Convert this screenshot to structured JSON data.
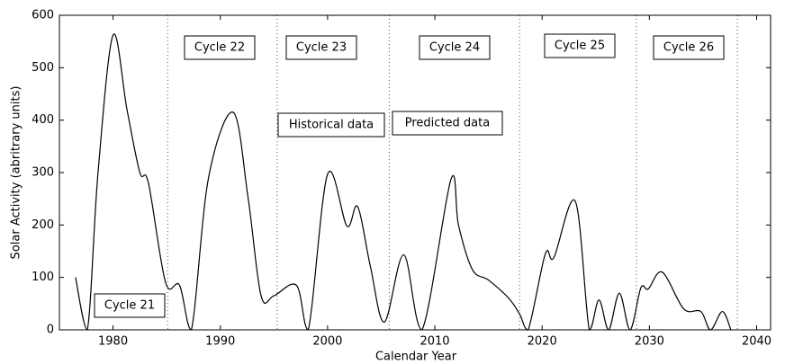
{
  "chart_data": {
    "type": "line",
    "x_label": "Calendar Year",
    "y_label": "Solar Activity (abritrary units)",
    "xlim": [
      1975,
      2041.3
    ],
    "xticks": [
      1980,
      1990,
      2000,
      2010,
      2020,
      2030,
      2040
    ],
    "ylim": [
      0,
      600
    ],
    "yticks": [
      0,
      100,
      200,
      300,
      400,
      500,
      600
    ],
    "grid": false,
    "cycle_boundaries": [
      1985.1,
      1995.3,
      2005.75,
      2017.9,
      2028.8,
      2038.2
    ],
    "annotations": [
      "Cycle 21",
      "Cycle 22",
      "Cycle 23",
      "Cycle 24",
      "Cycle 25",
      "Cycle 26",
      "Historical data",
      "Predicted data"
    ],
    "series": [
      {
        "color": "#000000",
        "x": [
          1976.5,
          1977.6,
          1978.6,
          1980,
          1981.3,
          1982.5,
          1983.3,
          1984.9,
          1986.2,
          1987.3,
          1988.9,
          1991.2,
          1992.6,
          1993.8,
          1995,
          1997.1,
          1998.2,
          2000,
          2001.8,
          2002.8,
          2004,
          2005.3,
          2007.1,
          2008.8,
          2011.5,
          2012.2,
          2013.5,
          2015,
          2016.9,
          2017.9,
          2018.7,
          2020.3,
          2021.1,
          2023.1,
          2024.4,
          2025.3,
          2026.2,
          2027.2,
          2028.2,
          2029.2,
          2029.9,
          2031.2,
          2033.2,
          2034.8,
          2035.7,
          2036.8,
          2037.6
        ],
        "values": [
          100,
          0,
          300,
          562,
          420,
          300,
          280,
          90,
          85,
          0,
          290,
          415,
          250,
          65,
          65,
          85,
          0,
          297,
          198,
          235,
          120,
          15,
          143,
          0,
          287,
          200,
          115,
          95,
          60,
          30,
          0,
          145,
          138,
          245,
          0,
          57,
          0,
          70,
          0,
          80,
          78,
          110,
          40,
          35,
          0,
          35,
          0
        ]
      }
    ]
  }
}
